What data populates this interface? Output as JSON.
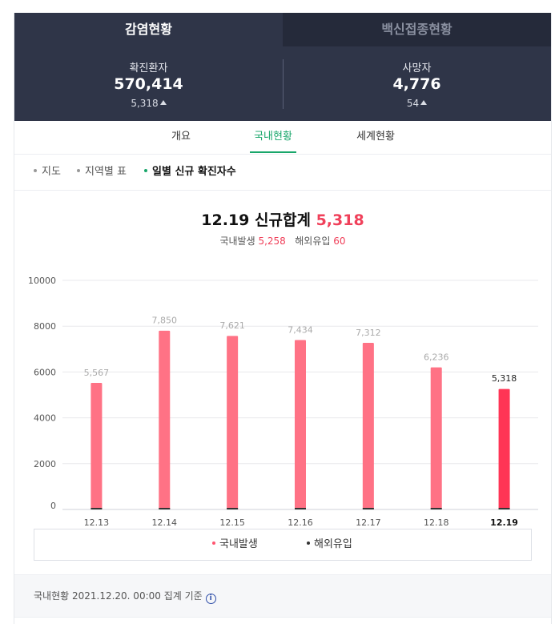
{
  "tabs": {
    "active": "감염현황",
    "inactive": "백신접종현황"
  },
  "stats": {
    "confirmed": {
      "label": "확진환자",
      "value": "570,414",
      "delta": "5,318"
    },
    "deaths": {
      "label": "사망자",
      "value": "4,776",
      "delta": "54"
    }
  },
  "subtabs": [
    "개요",
    "국내현황",
    "세계현황"
  ],
  "filters": [
    "지도",
    "지역별 표",
    "일별 신규 확진자수"
  ],
  "chart_header": {
    "date": "12.19",
    "label": "신규합계",
    "total": "5,318",
    "domestic_label": "국내발생",
    "domestic_value": "5,258",
    "overseas_label": "해외유입",
    "overseas_value": "60"
  },
  "chart_data": {
    "type": "bar",
    "stacked": true,
    "categories": [
      "12.13",
      "12.14",
      "12.15",
      "12.16",
      "12.17",
      "12.18",
      "12.19"
    ],
    "series": [
      {
        "name": "국내발생",
        "values": [
          5523,
          7800,
          7574,
          7396,
          7273,
          6200,
          5258
        ]
      },
      {
        "name": "해외유입",
        "values": [
          44,
          50,
          47,
          38,
          39,
          36,
          60
        ]
      }
    ],
    "totals": [
      5567,
      7850,
      7621,
      7434,
      7312,
      6236,
      5318
    ],
    "total_labels": [
      "5,567",
      "7,850",
      "7,621",
      "7,434",
      "7,312",
      "6,236",
      "5,318"
    ],
    "y_ticks": [
      0,
      2000,
      4000,
      6000,
      8000,
      10000
    ],
    "ylim": [
      0,
      10000
    ],
    "highlight_index": 6,
    "grid": true,
    "legend": "bottom"
  },
  "colors": {
    "domestic": "#ff7285",
    "domestic_highlight": "#ff3555",
    "overseas": "#333333",
    "accent_green": "#18a66a"
  },
  "footer": {
    "text": "국내현황 2021.12.20. 00:00 집계 기준"
  }
}
